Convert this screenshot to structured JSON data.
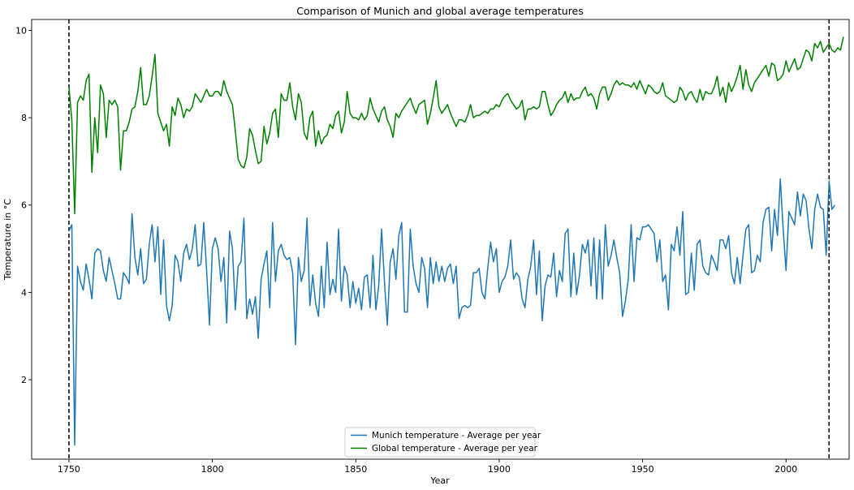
{
  "chart_data": {
    "type": "line",
    "title": "Comparison of Munich and global average temperatures",
    "xlabel": "Year",
    "ylabel": "Temperature in °C",
    "xlim": [
      1737,
      2022
    ],
    "ylim": [
      0.18,
      10.25
    ],
    "xticks": [
      1750,
      1800,
      1850,
      1900,
      1950,
      2000
    ],
    "yticks": [
      2,
      4,
      6,
      8,
      10
    ],
    "grid": false,
    "legend": "bottom-center",
    "vlines": [
      {
        "x": 1750,
        "style": "dashed",
        "color": "#000000"
      },
      {
        "x": 2015,
        "style": "dashed",
        "color": "#000000"
      }
    ],
    "series": [
      {
        "name": "Munich temperature - Average per year",
        "color": "#1f77b4",
        "x_start": 1750,
        "y": [
          5.4,
          5.55,
          0.5,
          4.6,
          4.25,
          4.05,
          4.65,
          4.3,
          3.85,
          4.9,
          5.0,
          4.95,
          4.5,
          4.25,
          4.8,
          4.5,
          4.2,
          3.85,
          3.85,
          4.45,
          4.35,
          4.2,
          5.8,
          4.8,
          4.4,
          5.0,
          4.2,
          4.3,
          5.1,
          5.55,
          4.7,
          5.5,
          3.95,
          5.2,
          3.7,
          3.35,
          3.7,
          4.85,
          4.7,
          4.25,
          4.9,
          5.1,
          4.75,
          5.0,
          5.55,
          4.6,
          4.65,
          5.6,
          4.5,
          3.25,
          5.0,
          5.25,
          5.0,
          4.25,
          4.8,
          3.3,
          5.4,
          5.0,
          3.6,
          4.6,
          4.7,
          5.7,
          3.4,
          3.85,
          3.5,
          3.9,
          2.95,
          4.3,
          4.65,
          4.95,
          3.65,
          5.6,
          4.25,
          4.95,
          5.1,
          4.85,
          4.75,
          4.8,
          4.45,
          2.8,
          4.8,
          4.25,
          4.5,
          5.7,
          3.7,
          4.4,
          3.75,
          3.45,
          4.6,
          3.65,
          5.15,
          3.95,
          4.3,
          4.0,
          5.45,
          3.8,
          4.6,
          4.4,
          3.65,
          4.25,
          3.75,
          4.1,
          3.6,
          4.35,
          4.4,
          3.65,
          4.85,
          3.6,
          4.15,
          5.45,
          4.25,
          3.25,
          4.7,
          5.0,
          4.3,
          5.3,
          5.6,
          3.55,
          3.55,
          5.45,
          4.6,
          4.2,
          4.0,
          4.8,
          4.55,
          3.65,
          4.8,
          4.2,
          4.7,
          4.25,
          4.6,
          4.25,
          4.55,
          4.65,
          4.2,
          4.6,
          3.4,
          3.65,
          3.7,
          3.65,
          3.7,
          4.45,
          4.45,
          4.55,
          4.0,
          3.85,
          4.55,
          5.15,
          4.7,
          5.0,
          4.0,
          4.25,
          4.35,
          4.6,
          5.2,
          4.3,
          4.45,
          4.35,
          3.85,
          3.65,
          4.3,
          4.6,
          5.2,
          3.95,
          4.95,
          3.35,
          4.15,
          4.4,
          4.35,
          4.9,
          3.9,
          4.5,
          4.25,
          5.35,
          5.45,
          3.9,
          4.9,
          3.95,
          4.4,
          5.1,
          4.9,
          5.2,
          4.15,
          5.25,
          3.85,
          5.2,
          3.85,
          5.55,
          4.6,
          4.85,
          5.2,
          4.8,
          4.45,
          3.45,
          3.8,
          4.3,
          5.55,
          4.25,
          5.25,
          5.2,
          5.5,
          5.5,
          5.55,
          5.45,
          5.35,
          4.7,
          5.2,
          4.25,
          4.4,
          3.6,
          5.1,
          4.95,
          5.5,
          4.85,
          5.85,
          3.95,
          4.0,
          4.9,
          4.05,
          5.1,
          5.2,
          4.6,
          4.45,
          4.4,
          4.85,
          4.7,
          4.5,
          5.2,
          5.2,
          5.0,
          5.3,
          4.45,
          4.2,
          4.8,
          4.2,
          4.85,
          5.45,
          5.55,
          4.45,
          4.5,
          4.85,
          4.7,
          5.6,
          5.9,
          5.95,
          4.95,
          5.9,
          5.3,
          6.6,
          5.45,
          4.5,
          5.85,
          5.7,
          5.55,
          6.3,
          5.75,
          6.25,
          6.1,
          5.45,
          5.0,
          5.9,
          6.25,
          5.95,
          5.9,
          4.85,
          6.55,
          5.9,
          6.0
        ]
      },
      {
        "name": "Global temperature - Average per year",
        "color": "#008000",
        "x_start": 1750,
        "y": [
          8.7,
          7.95,
          5.8,
          8.35,
          8.5,
          8.4,
          8.85,
          9.0,
          6.75,
          8.0,
          7.2,
          8.75,
          8.55,
          7.55,
          8.4,
          8.3,
          8.4,
          8.25,
          6.8,
          7.7,
          7.7,
          7.9,
          8.2,
          8.25,
          8.6,
          9.15,
          8.3,
          8.3,
          8.5,
          8.95,
          9.45,
          8.1,
          7.9,
          7.7,
          7.85,
          7.35,
          8.25,
          8.05,
          8.45,
          8.3,
          8.0,
          8.2,
          8.15,
          8.25,
          8.55,
          8.45,
          8.35,
          8.5,
          8.65,
          8.5,
          8.5,
          8.6,
          8.6,
          8.5,
          8.85,
          8.6,
          8.45,
          8.3,
          7.7,
          7.05,
          6.9,
          6.85,
          7.1,
          7.75,
          7.6,
          7.25,
          6.95,
          7.0,
          7.8,
          7.4,
          7.65,
          8.1,
          8.2,
          7.55,
          8.55,
          8.4,
          8.4,
          8.8,
          8.25,
          7.95,
          8.55,
          8.35,
          7.65,
          7.5,
          8.0,
          8.15,
          7.35,
          7.7,
          7.4,
          7.55,
          7.6,
          7.85,
          7.75,
          8.05,
          8.15,
          7.65,
          7.9,
          8.6,
          8.1,
          8.0,
          8.0,
          7.95,
          8.1,
          7.95,
          8.05,
          8.45,
          8.2,
          8.05,
          7.9,
          8.15,
          8.25,
          7.95,
          7.8,
          7.55,
          8.1,
          8.0,
          8.15,
          8.25,
          8.35,
          8.45,
          8.25,
          8.1,
          8.3,
          8.35,
          8.4,
          7.85,
          8.1,
          8.45,
          8.85,
          8.25,
          8.1,
          8.2,
          8.3,
          8.1,
          7.95,
          7.8,
          7.95,
          7.95,
          7.9,
          8.05,
          8.3,
          8.0,
          8.05,
          8.05,
          8.1,
          8.15,
          8.1,
          8.2,
          8.2,
          8.3,
          8.25,
          8.4,
          8.5,
          8.55,
          8.4,
          8.3,
          8.2,
          8.25,
          8.4,
          7.95,
          8.2,
          8.2,
          8.25,
          8.2,
          8.25,
          8.6,
          8.6,
          8.3,
          8.05,
          8.15,
          8.3,
          8.4,
          8.45,
          8.6,
          8.35,
          8.55,
          8.4,
          8.45,
          8.45,
          8.6,
          8.7,
          8.5,
          8.55,
          8.45,
          8.2,
          8.55,
          8.7,
          8.7,
          8.4,
          8.55,
          8.75,
          8.85,
          8.75,
          8.8,
          8.75,
          8.75,
          8.7,
          8.8,
          8.65,
          8.85,
          8.7,
          8.55,
          8.75,
          8.7,
          8.6,
          8.55,
          8.6,
          8.8,
          8.5,
          8.45,
          8.4,
          8.35,
          8.4,
          8.7,
          8.6,
          8.4,
          8.55,
          8.6,
          8.45,
          8.35,
          8.65,
          8.4,
          8.6,
          8.55,
          8.55,
          8.7,
          8.95,
          8.5,
          8.7,
          8.35,
          8.8,
          8.6,
          8.75,
          8.95,
          9.2,
          8.65,
          9.1,
          8.75,
          8.6,
          8.8,
          8.9,
          9.0,
          9.1,
          9.2,
          8.95,
          9.25,
          9.2,
          8.85,
          8.9,
          9.0,
          9.3,
          9.05,
          9.2,
          9.35,
          9.1,
          9.15,
          9.35,
          9.55,
          9.5,
          9.3,
          9.7,
          9.6,
          9.75,
          9.5,
          9.6,
          9.7,
          9.55,
          9.5,
          9.6,
          9.55,
          9.85
        ]
      }
    ]
  }
}
